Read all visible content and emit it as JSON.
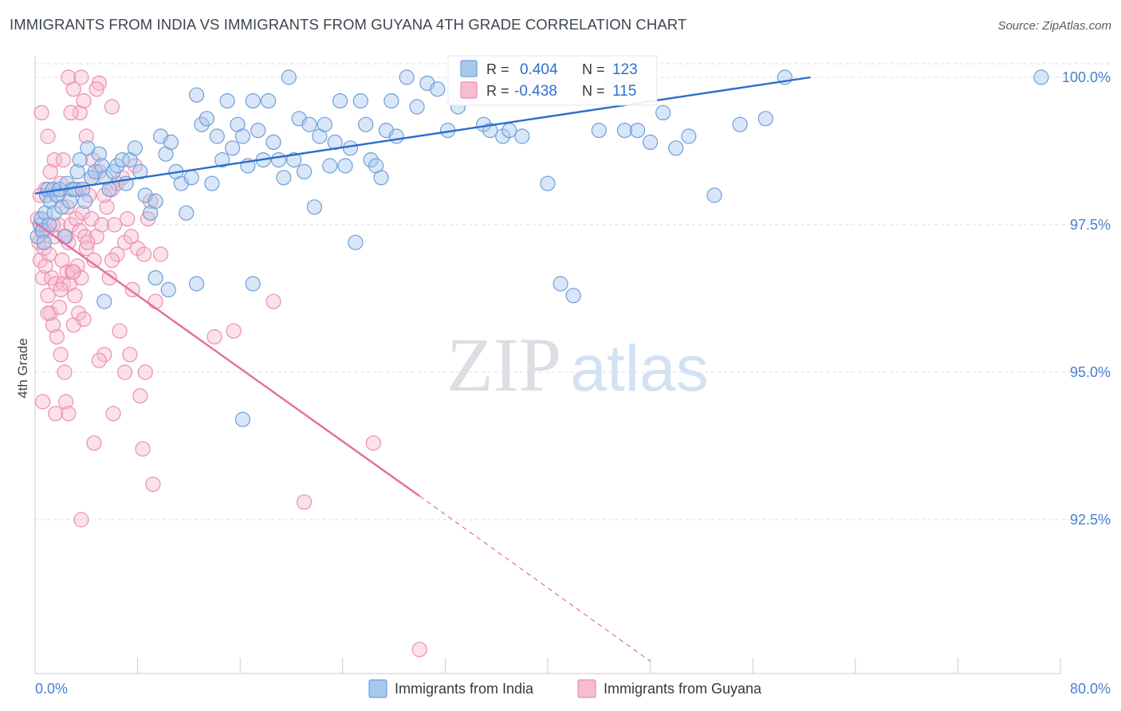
{
  "title": "IMMIGRANTS FROM INDIA VS IMMIGRANTS FROM GUYANA 4TH GRADE CORRELATION CHART",
  "source": "Source: ZipAtlas.com",
  "watermark": {
    "zip": "ZIP",
    "atlas": "atlas"
  },
  "colors": {
    "india_fill": "#a9c8ee",
    "india_stroke": "#6e9fd8",
    "india_line": "#2a6dcc",
    "guyana_fill": "#f6bcd0",
    "guyana_stroke": "#ec8eb0",
    "guyana_line": "#e26f98",
    "axis_text": "#4a7fd0",
    "grid": "#d8dde3"
  },
  "legend": [
    {
      "r_label": "R =",
      "r_value": "0.404",
      "n_label": "N =",
      "n_value": "123"
    },
    {
      "r_label": "R =",
      "r_value": "-0.438",
      "n_label": "N =",
      "n_value": "115"
    }
  ],
  "chart_data": {
    "type": "scatter",
    "title": "IMMIGRANTS FROM INDIA VS IMMIGRANTS FROM GUYANA 4TH GRADE CORRELATION CHART",
    "xlabel": "",
    "ylabel": "4th Grade",
    "xlim": [
      0,
      80
    ],
    "ylim": [
      90.0,
      100.2
    ],
    "x_tick_labels": [
      "0.0%",
      "80.0%"
    ],
    "y_ticks": [
      92.5,
      95.0,
      97.5,
      100.0
    ],
    "y_tick_labels": [
      "92.5%",
      "95.0%",
      "97.5%",
      "100.0%"
    ],
    "legend_position": "bottom",
    "series": [
      {
        "name": "Immigrants from India",
        "r": 0.404,
        "n": 123,
        "trend": {
          "x": [
            0,
            60.5
          ],
          "y": [
            98.03,
            100.0
          ]
        },
        "points": [
          [
            0.2,
            97.3
          ],
          [
            0.4,
            97.5
          ],
          [
            0.5,
            97.6
          ],
          [
            0.6,
            97.4
          ],
          [
            0.7,
            97.2
          ],
          [
            0.8,
            97.7
          ],
          [
            0.9,
            98.0
          ],
          [
            1.0,
            98.1
          ],
          [
            1.1,
            97.5
          ],
          [
            1.2,
            97.9
          ],
          [
            1.4,
            98.1
          ],
          [
            1.5,
            97.7
          ],
          [
            1.7,
            98.0
          ],
          [
            1.9,
            98.1
          ],
          [
            2.1,
            97.8
          ],
          [
            2.3,
            97.3
          ],
          [
            2.5,
            98.2
          ],
          [
            2.7,
            97.9
          ],
          [
            2.9,
            98.1
          ],
          [
            3.1,
            98.1
          ],
          [
            3.3,
            98.4
          ],
          [
            3.5,
            98.6
          ],
          [
            3.7,
            98.1
          ],
          [
            3.9,
            97.9
          ],
          [
            4.1,
            98.8
          ],
          [
            4.4,
            98.3
          ],
          [
            4.7,
            98.4
          ],
          [
            5.0,
            98.7
          ],
          [
            5.2,
            98.5
          ],
          [
            5.5,
            98.3
          ],
          [
            5.8,
            98.1
          ],
          [
            6.1,
            98.4
          ],
          [
            6.4,
            98.5
          ],
          [
            6.8,
            98.6
          ],
          [
            7.1,
            98.2
          ],
          [
            7.4,
            98.6
          ],
          [
            7.8,
            98.8
          ],
          [
            8.2,
            98.4
          ],
          [
            8.6,
            98.0
          ],
          [
            9.0,
            97.7
          ],
          [
            9.4,
            97.9
          ],
          [
            9.8,
            99.0
          ],
          [
            10.2,
            98.7
          ],
          [
            10.6,
            98.9
          ],
          [
            11.0,
            98.4
          ],
          [
            11.4,
            98.2
          ],
          [
            11.8,
            97.7
          ],
          [
            12.2,
            98.3
          ],
          [
            12.6,
            99.7
          ],
          [
            13.0,
            99.2
          ],
          [
            13.4,
            99.3
          ],
          [
            13.8,
            98.2
          ],
          [
            14.2,
            99.0
          ],
          [
            14.6,
            98.6
          ],
          [
            15.0,
            99.6
          ],
          [
            15.4,
            98.8
          ],
          [
            15.8,
            99.2
          ],
          [
            16.2,
            99.0
          ],
          [
            16.6,
            98.5
          ],
          [
            17.0,
            99.6
          ],
          [
            17.4,
            99.1
          ],
          [
            17.8,
            98.6
          ],
          [
            18.2,
            99.6
          ],
          [
            18.6,
            98.9
          ],
          [
            19.0,
            98.6
          ],
          [
            19.4,
            98.3
          ],
          [
            19.8,
            100.0
          ],
          [
            20.2,
            98.6
          ],
          [
            20.6,
            99.3
          ],
          [
            21.0,
            98.4
          ],
          [
            21.4,
            99.2
          ],
          [
            21.8,
            97.8
          ],
          [
            22.2,
            99.0
          ],
          [
            22.6,
            99.2
          ],
          [
            23.0,
            98.5
          ],
          [
            23.4,
            98.9
          ],
          [
            23.8,
            99.6
          ],
          [
            24.2,
            98.5
          ],
          [
            24.6,
            98.8
          ],
          [
            25.0,
            97.2
          ],
          [
            25.4,
            99.6
          ],
          [
            25.8,
            99.2
          ],
          [
            26.2,
            98.6
          ],
          [
            26.6,
            98.5
          ],
          [
            27.0,
            98.3
          ],
          [
            27.4,
            99.1
          ],
          [
            27.8,
            99.6
          ],
          [
            28.2,
            99.0
          ],
          [
            29.0,
            100.0
          ],
          [
            29.8,
            99.5
          ],
          [
            30.6,
            99.9
          ],
          [
            31.4,
            99.8
          ],
          [
            32.2,
            99.1
          ],
          [
            33.0,
            99.5
          ],
          [
            34.0,
            100.0
          ],
          [
            35.0,
            99.2
          ],
          [
            35.5,
            99.1
          ],
          [
            36.5,
            99.0
          ],
          [
            37.0,
            99.1
          ],
          [
            38.0,
            99.0
          ],
          [
            38.5,
            100.0
          ],
          [
            40.0,
            98.2
          ],
          [
            41.0,
            96.5
          ],
          [
            42.0,
            96.3
          ],
          [
            44.0,
            99.1
          ],
          [
            45.0,
            100.0
          ],
          [
            46.0,
            99.1
          ],
          [
            47.0,
            99.1
          ],
          [
            48.0,
            98.9
          ],
          [
            49.0,
            99.4
          ],
          [
            50.0,
            98.8
          ],
          [
            51.0,
            99.0
          ],
          [
            53.0,
            98.0
          ],
          [
            55.0,
            99.2
          ],
          [
            57.0,
            99.3
          ],
          [
            58.5,
            100.0
          ],
          [
            78.5,
            100.0
          ],
          [
            10.4,
            96.4
          ],
          [
            16.2,
            94.2
          ],
          [
            17.0,
            96.5
          ],
          [
            12.6,
            96.5
          ],
          [
            9.4,
            96.6
          ],
          [
            5.4,
            96.2
          ]
        ]
      },
      {
        "name": "Immigrants from Guyana",
        "r": -0.438,
        "n": 115,
        "trend": {
          "x": [
            0,
            30.0
          ],
          "y": [
            97.54,
            92.9
          ]
        },
        "trend_dashed": {
          "x": [
            30.0,
            48.0
          ],
          "y": [
            92.9,
            90.1
          ]
        },
        "points": [
          [
            0.2,
            97.6
          ],
          [
            0.3,
            97.2
          ],
          [
            0.4,
            96.9
          ],
          [
            0.5,
            97.4
          ],
          [
            0.6,
            96.6
          ],
          [
            0.7,
            97.1
          ],
          [
            0.8,
            96.8
          ],
          [
            0.9,
            97.4
          ],
          [
            1.0,
            96.3
          ],
          [
            1.1,
            97.0
          ],
          [
            1.2,
            96.0
          ],
          [
            1.3,
            96.6
          ],
          [
            1.4,
            95.8
          ],
          [
            1.5,
            97.3
          ],
          [
            1.6,
            96.5
          ],
          [
            1.7,
            95.6
          ],
          [
            1.8,
            97.5
          ],
          [
            1.9,
            96.1
          ],
          [
            2.0,
            95.3
          ],
          [
            2.1,
            96.9
          ],
          [
            2.2,
            96.5
          ],
          [
            2.3,
            95.0
          ],
          [
            2.4,
            94.5
          ],
          [
            2.5,
            96.7
          ],
          [
            2.6,
            97.2
          ],
          [
            2.7,
            96.5
          ],
          [
            2.8,
            97.5
          ],
          [
            2.9,
            96.7
          ],
          [
            3.0,
            95.8
          ],
          [
            3.1,
            96.3
          ],
          [
            3.2,
            97.6
          ],
          [
            3.3,
            96.8
          ],
          [
            3.4,
            96.0
          ],
          [
            3.5,
            97.4
          ],
          [
            3.6,
            96.6
          ],
          [
            3.7,
            97.7
          ],
          [
            3.8,
            95.9
          ],
          [
            3.9,
            97.3
          ],
          [
            4.0,
            97.1
          ],
          [
            4.2,
            98.0
          ],
          [
            4.4,
            97.6
          ],
          [
            4.6,
            96.9
          ],
          [
            4.8,
            97.3
          ],
          [
            5.0,
            98.4
          ],
          [
            5.2,
            97.5
          ],
          [
            5.4,
            95.3
          ],
          [
            5.6,
            97.8
          ],
          [
            5.8,
            96.6
          ],
          [
            6.0,
            98.1
          ],
          [
            6.2,
            97.5
          ],
          [
            6.4,
            97.0
          ],
          [
            6.6,
            95.7
          ],
          [
            6.8,
            98.3
          ],
          [
            7.0,
            97.2
          ],
          [
            7.2,
            97.6
          ],
          [
            7.4,
            95.3
          ],
          [
            7.6,
            96.4
          ],
          [
            7.8,
            98.5
          ],
          [
            8.0,
            97.1
          ],
          [
            8.2,
            94.6
          ],
          [
            8.4,
            93.7
          ],
          [
            8.6,
            95.0
          ],
          [
            8.8,
            97.6
          ],
          [
            9.0,
            97.9
          ],
          [
            9.2,
            93.1
          ],
          [
            9.4,
            96.2
          ],
          [
            9.8,
            97.0
          ],
          [
            0.5,
            99.4
          ],
          [
            1.0,
            99.0
          ],
          [
            1.5,
            98.6
          ],
          [
            2.0,
            98.2
          ],
          [
            2.5,
            97.8
          ],
          [
            3.0,
            99.8
          ],
          [
            3.5,
            99.4
          ],
          [
            4.0,
            99.0
          ],
          [
            4.5,
            98.6
          ],
          [
            5.0,
            99.9
          ],
          [
            6.0,
            99.5
          ],
          [
            1.2,
            98.4
          ],
          [
            2.2,
            98.6
          ],
          [
            0.8,
            98.1
          ],
          [
            1.8,
            98.0
          ],
          [
            2.8,
            99.4
          ],
          [
            3.8,
            99.6
          ],
          [
            4.8,
            99.8
          ],
          [
            0.4,
            98.0
          ],
          [
            1.4,
            97.5
          ],
          [
            2.4,
            97.3
          ],
          [
            3.4,
            98.1
          ],
          [
            4.4,
            98.3
          ],
          [
            5.4,
            98.0
          ],
          [
            6.4,
            98.2
          ],
          [
            2.6,
            100.0
          ],
          [
            3.6,
            100.0
          ],
          [
            0.6,
            94.5
          ],
          [
            1.6,
            94.3
          ],
          [
            2.6,
            94.3
          ],
          [
            3.6,
            92.5
          ],
          [
            4.6,
            93.8
          ],
          [
            6.1,
            94.3
          ],
          [
            14.0,
            95.6
          ],
          [
            15.5,
            95.7
          ],
          [
            18.6,
            96.2
          ],
          [
            21.0,
            92.8
          ],
          [
            26.4,
            93.8
          ],
          [
            30.0,
            90.3
          ],
          [
            7.0,
            95.0
          ],
          [
            5.0,
            95.2
          ],
          [
            6.0,
            96.9
          ],
          [
            8.5,
            97.0
          ],
          [
            7.5,
            97.3
          ],
          [
            4.1,
            97.2
          ],
          [
            1.0,
            96.0
          ],
          [
            2.0,
            96.4
          ],
          [
            3.0,
            96.7
          ]
        ]
      }
    ]
  }
}
